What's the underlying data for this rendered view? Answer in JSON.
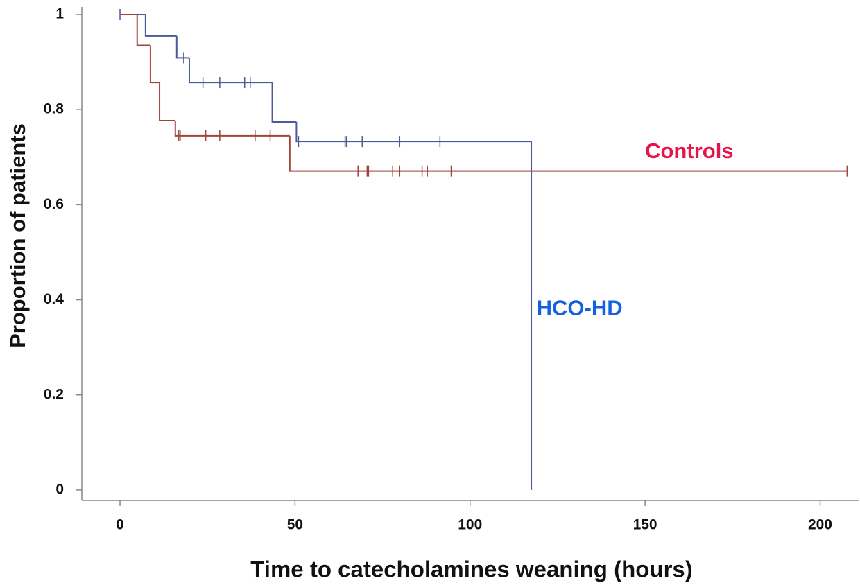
{
  "chart_data": {
    "type": "step",
    "x_label": "Time to catecholamines weaning (hours)",
    "y_label": "Proportion of patients",
    "xlim": [
      -10.9,
      211
    ],
    "xticks": [
      0,
      50,
      100,
      150,
      200
    ],
    "ylim": [
      -0.022,
      1.016
    ],
    "yticks": [
      0,
      0.2,
      0.4,
      0.6,
      0.8,
      1
    ],
    "series": [
      {
        "name": "HCO-HD",
        "color": "#4a5a9a",
        "label_color": "#1560e0",
        "label_at": [
          119,
          0.38
        ],
        "x": [
          0,
          7.3,
          16.2,
          19.8,
          43.5,
          50.4,
          117.5
        ],
        "values": [
          1,
          0.955,
          0.909,
          0.857,
          0.774,
          0.733,
          0
        ],
        "censor_x": [
          0,
          18.2,
          23.7,
          28.5,
          35.6,
          37.2,
          51,
          64.3,
          64.7,
          69.2,
          79.9,
          91.4
        ],
        "censor_values": [
          1,
          0.909,
          0.857,
          0.857,
          0.857,
          0.857,
          0.733,
          0.733,
          0.733,
          0.733,
          0.733,
          0.733
        ]
      },
      {
        "name": "Controls",
        "color": "#a0443a",
        "label_color": "#e8134a",
        "label_at": [
          150,
          0.71
        ],
        "x": [
          0,
          4.9,
          8.7,
          11.3,
          15.8,
          48.5,
          207.7
        ],
        "values": [
          1,
          0.935,
          0.857,
          0.777,
          0.745,
          0.671,
          0.671
        ],
        "censor_x": [
          16.8,
          17.2,
          24.5,
          28.5,
          38.6,
          42.9,
          68,
          70.6,
          71,
          77.9,
          79.9,
          86.3,
          87.8,
          94.6,
          207.7
        ],
        "censor_values": [
          0.745,
          0.745,
          0.745,
          0.745,
          0.745,
          0.745,
          0.671,
          0.671,
          0.671,
          0.671,
          0.671,
          0.671,
          0.671,
          0.671,
          0.671
        ]
      }
    ]
  }
}
